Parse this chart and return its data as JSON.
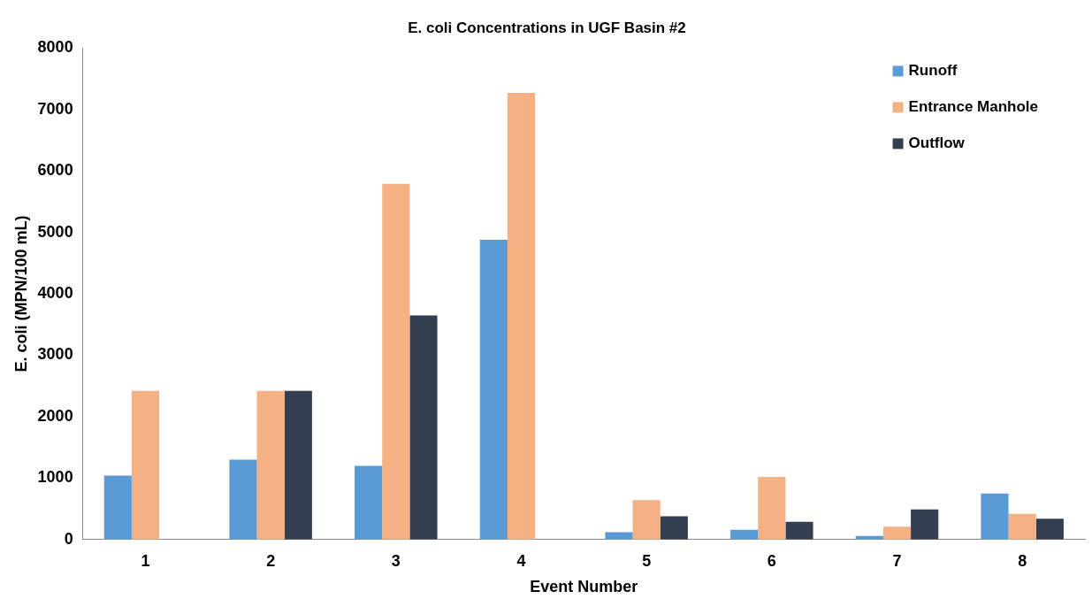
{
  "chart_data": {
    "type": "bar",
    "title": "E. coli Concentrations in UGF Basin #2",
    "xlabel": "Event Number",
    "ylabel": "E. coli (MPN/100 mL)",
    "categories": [
      "1",
      "2",
      "3",
      "4",
      "5",
      "6",
      "7",
      "8"
    ],
    "series": [
      {
        "name": "Runoff",
        "color": "#5b9bd5",
        "values": [
          1040,
          1300,
          1200,
          4880,
          120,
          160,
          60,
          750
        ]
      },
      {
        "name": "Entrance Manhole",
        "color": "#f4b183",
        "values": [
          2420,
          2420,
          5790,
          7270,
          640,
          1020,
          210,
          420
        ]
      },
      {
        "name": "Outflow",
        "color": "#333f50",
        "values": [
          null,
          2420,
          3650,
          null,
          380,
          290,
          490,
          340
        ]
      }
    ],
    "ylim": [
      0,
      8000
    ],
    "yticks": [
      0,
      1000,
      2000,
      3000,
      4000,
      5000,
      6000,
      7000,
      8000
    ],
    "grid": false,
    "legend": "top right"
  }
}
